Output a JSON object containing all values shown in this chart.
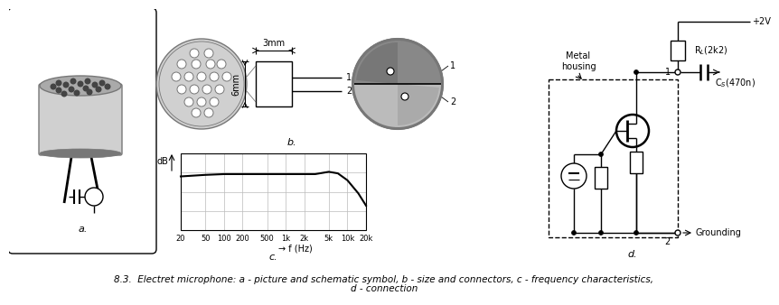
{
  "title_line1": "8.3.  Electret microphone: a - picture and schematic symbol, b - size and connectors, c - frequency characteristics,",
  "title_line2": "d - connection",
  "panel_a_label": "a.",
  "panel_b_label": "b.",
  "panel_c_label": "c.",
  "panel_d_label": "d.",
  "freq_ticks": [
    "20",
    "50",
    "100",
    "200",
    "500",
    "1k",
    "2k",
    "5k",
    "10k",
    "20k"
  ],
  "freq_xlabel": "→ f (Hz)",
  "freq_ylabel": "dB",
  "annotation_3mm": "3mm",
  "annotation_6mm": "6mm",
  "label1": "1",
  "label2": "2",
  "metal_housing": "Metal\nhousing",
  "rl_label": "R_L(2k2)",
  "cs_label": "C_S(470n)",
  "plus2v": "+2V",
  "grounding": "Grounding",
  "bg_color": "#ffffff",
  "line_color": "#000000",
  "gray_light": "#d0d0d0",
  "gray_med": "#aaaaaa",
  "gray_dark": "#777777",
  "grid_color": "#bbbbbb"
}
